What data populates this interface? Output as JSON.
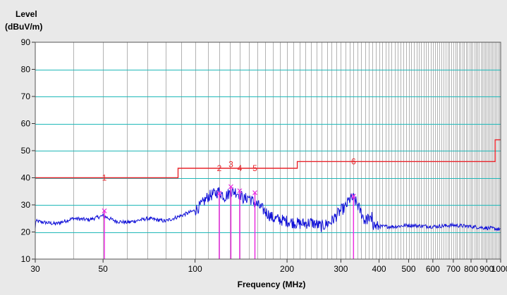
{
  "chart_data": {
    "type": "line",
    "ylabel_line1": "Level",
    "ylabel_line2": "(dBuV/m)",
    "xlabel": "Frequency (MHz)",
    "x_scale": "log",
    "xlim": [
      30,
      1000
    ],
    "ylim": [
      10,
      90
    ],
    "x_ticks": [
      30,
      50,
      100,
      200,
      300,
      400,
      500,
      600,
      700,
      800,
      900,
      1000
    ],
    "x_tick_labels": [
      "30",
      "50",
      "100",
      "200",
      "300",
      "400",
      "500",
      "600",
      "700",
      "800",
      "900",
      "1000"
    ],
    "y_ticks": [
      10,
      20,
      30,
      40,
      50,
      60,
      70,
      80,
      90
    ],
    "y_tick_labels": [
      "10",
      "20",
      "30",
      "40",
      "50",
      "60",
      "70",
      "80",
      "90"
    ],
    "grid": true,
    "colors": {
      "plot_bg": "#ffffff",
      "page_bg": "#e9e9e9",
      "major_grid": "#1fb8b8",
      "minor_grid": "#b3b3b3",
      "limit_line": "#e8242a",
      "trace": "#1010d8",
      "markers": "#ea2ee0"
    },
    "limit_line": {
      "x": [
        30,
        88,
        88,
        216,
        216,
        960,
        960,
        1000
      ],
      "y": [
        40,
        40,
        43.5,
        43.5,
        46,
        46,
        54,
        54
      ]
    },
    "trace_anchors": {
      "x": [
        30,
        35,
        40,
        45,
        50,
        55,
        60,
        70,
        80,
        90,
        100,
        105,
        110,
        115,
        120,
        125,
        130,
        135,
        140,
        145,
        150,
        155,
        160,
        170,
        180,
        200,
        220,
        240,
        260,
        280,
        300,
        310,
        320,
        330,
        340,
        350,
        360,
        370,
        380,
        390,
        400,
        450,
        500,
        600,
        700,
        800,
        900,
        1000
      ],
      "y": [
        24,
        23,
        25,
        24.5,
        26,
        24,
        23.5,
        25,
        24,
        26,
        28,
        30,
        33,
        34,
        35,
        33,
        34.5,
        35,
        34,
        32,
        33,
        31,
        30,
        27.5,
        25,
        24,
        23,
        23.5,
        22,
        24,
        28,
        29,
        32,
        32.5,
        30,
        27,
        24,
        25,
        23,
        22,
        22,
        22,
        22.5,
        22,
        22.5,
        22,
        21.5,
        21
      ]
    },
    "peak_markers": [
      {
        "label": "1",
        "freq": 50.5,
        "level": 27.8,
        "label_level": 40
      },
      {
        "label": "2",
        "freq": 120,
        "level": 34.3,
        "label_level": 43.5
      },
      {
        "label": "3",
        "freq": 131,
        "level": 36.7,
        "label_level": 45
      },
      {
        "label": "4",
        "freq": 140,
        "level": 35.2,
        "label_level": 43.5
      },
      {
        "label": "5",
        "freq": 157,
        "level": 34.5,
        "label_level": 43.5
      },
      {
        "label": "6",
        "freq": 330,
        "level": 33.2,
        "label_level": 46
      }
    ]
  }
}
